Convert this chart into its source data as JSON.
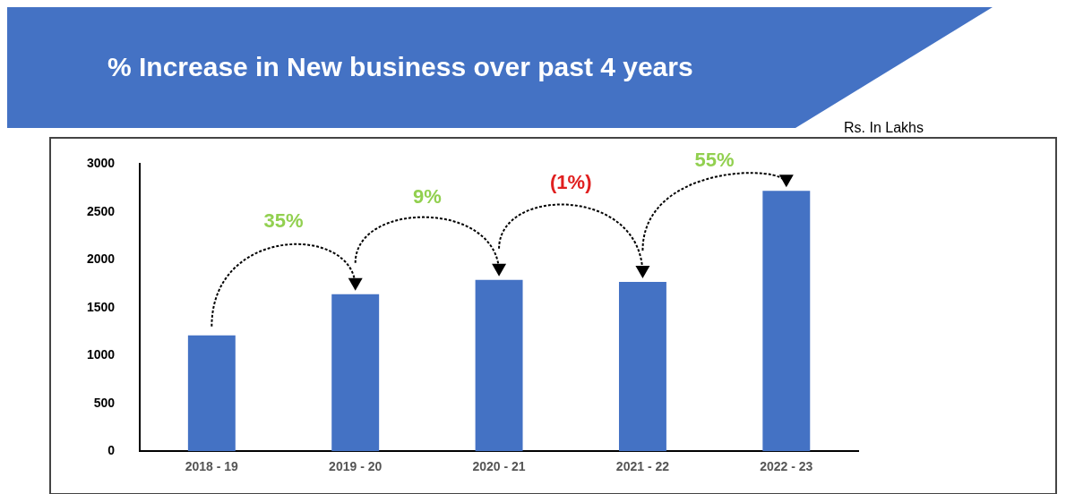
{
  "chart_data": {
    "type": "bar",
    "title": "% Increase in New business over past 4 years",
    "categories": [
      "2018 - 19",
      "2019 - 20",
      "2020 - 21",
      "2021 - 22",
      "2022 - 23"
    ],
    "values": [
      1210,
      1640,
      1790,
      1770,
      2720
    ],
    "color": "#4472c4",
    "ylim": [
      0,
      3000
    ],
    "yticks": [
      0,
      500,
      1000,
      1500,
      2000,
      2500,
      3000
    ],
    "grid": false,
    "legend": false,
    "annotations": [
      "Rs. In Lakhs",
      "35%",
      "9%",
      "(1%)",
      "55%"
    ]
  }
}
